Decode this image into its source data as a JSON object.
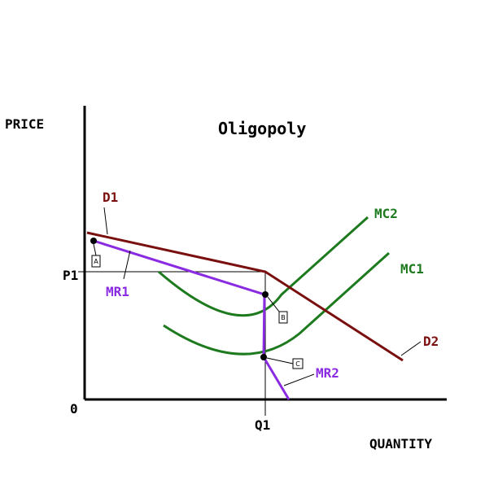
{
  "title": "Oligopoly",
  "axes": {
    "y_label": "PRICE",
    "x_label": "QUANTITY",
    "origin": "0"
  },
  "markers": {
    "p1": "P1",
    "q1": "Q1"
  },
  "curves": {
    "d1": "D1",
    "d2": "D2",
    "mr1": "MR1",
    "mr2": "MR2",
    "mc1": "MC1",
    "mc2": "MC2"
  },
  "points": {
    "a": "A",
    "b": "B",
    "c": "C"
  },
  "colors": {
    "axis": "#000000",
    "demand": "#7a0f0f",
    "marginal_revenue": "#8a2be2",
    "marginal_cost": "#1e7a1e",
    "guide": "#000000"
  }
}
